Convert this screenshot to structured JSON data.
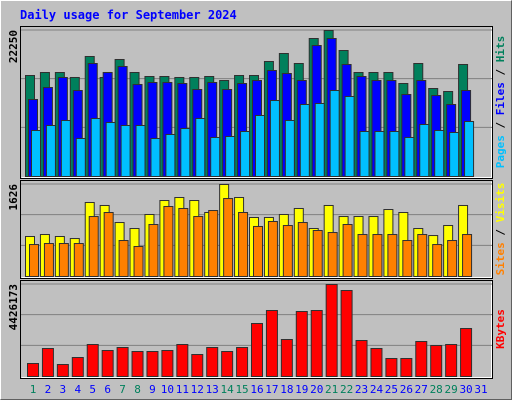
{
  "chart_data": [
    {
      "type": "bar",
      "title": "Daily usage for September 2024",
      "ylim": [
        0,
        22250
      ],
      "yticks": [
        22250
      ],
      "legend_separator": " / ",
      "series": [
        {
          "name": "Hits",
          "color": "#00805c",
          "values": [
            15392,
            15849,
            15849,
            15088,
            18288,
            15088,
            17831,
            15849,
            15240,
            15240,
            15088,
            15088,
            15240,
            14630,
            15392,
            15392,
            17526,
            18745,
            17221,
            21031,
            22250,
            19202,
            15849,
            15849,
            15849,
            14173,
            17221,
            13411,
            12954,
            17069,
            0
          ]
        },
        {
          "name": "Files",
          "color": "#0000ff",
          "values": [
            11735,
            13564,
            15088,
            13106,
            17221,
            15850,
            16764,
            14021,
            14326,
            14326,
            14173,
            13259,
            14326,
            13259,
            14173,
            14630,
            16154,
            15697,
            14630,
            19964,
            21031,
            17069,
            15240,
            14630,
            14630,
            12497,
            14630,
            12344,
            10973,
            13106,
            0
          ]
        },
        {
          "name": "Pages",
          "color": "#00c0ff",
          "values": [
            7010,
            7772,
            8534,
            5791,
            8839,
            8230,
            7772,
            7772,
            5791,
            6401,
            7315,
            8839,
            5944,
            6096,
            6858,
            9296,
            11582,
            8534,
            10973,
            11125,
            13106,
            12192,
            6858,
            6858,
            6858,
            5944,
            7925,
            7010,
            6706,
            8382,
            0
          ]
        }
      ]
    },
    {
      "type": "bar",
      "ylim": [
        0,
        1626
      ],
      "yticks": [
        1626
      ],
      "legend_separator": " / ",
      "series": [
        {
          "name": "Visits",
          "color": "#ffff00",
          "values": [
            707,
            742,
            707,
            671,
            1308,
            1255,
            954,
            848,
            1096,
            1343,
            1396,
            1343,
            1131,
            1626,
            1396,
            1043,
            1043,
            1096,
            1202,
            848,
            1255,
            1060,
            1060,
            1060,
            1184,
            1131,
            848,
            724,
            901,
            1255,
            0
          ]
        },
        {
          "name": "Sites",
          "color": "#ff8000",
          "values": [
            565,
            583,
            583,
            583,
            1060,
            1131,
            636,
            530,
            919,
            1237,
            1202,
            1060,
            1166,
            1378,
            1131,
            884,
            972,
            901,
            954,
            813,
            777,
            919,
            742,
            742,
            742,
            636,
            742,
            565,
            636,
            742,
            0
          ]
        }
      ]
    },
    {
      "type": "bar",
      "ylim": [
        0,
        4426173
      ],
      "yticks": [
        4426173
      ],
      "categories": [
        "1",
        "2",
        "3",
        "4",
        "5",
        "6",
        "7",
        "8",
        "9",
        "10",
        "11",
        "12",
        "13",
        "14",
        "15",
        "16",
        "17",
        "18",
        "19",
        "20",
        "21",
        "22",
        "23",
        "24",
        "25",
        "26",
        "27",
        "28",
        "29",
        "30",
        "31"
      ],
      "category_colors": [
        "#00805c",
        "#0000ff",
        "#0000ff",
        "#0000ff",
        "#0000ff",
        "#0000ff",
        "#00805c",
        "#00805c",
        "#0000ff",
        "#0000ff",
        "#0000ff",
        "#0000ff",
        "#0000ff",
        "#00805c",
        "#00805c",
        "#0000ff",
        "#0000ff",
        "#0000ff",
        "#0000ff",
        "#0000ff",
        "#00805c",
        "#00805c",
        "#0000ff",
        "#0000ff",
        "#0000ff",
        "#0000ff",
        "#0000ff",
        "#00805c",
        "#00805c",
        "#0000ff",
        "#0000ff"
      ],
      "series": [
        {
          "name": "KBytes",
          "color": "#ff0000",
          "values": [
            625443,
            1347108,
            577332,
            914109,
            1539552,
            1250886,
            1395219,
            1202775,
            1202775,
            1250886,
            1539552,
            1058442,
            1395219,
            1202775,
            1395219,
            2549883,
            3175326,
            1780107,
            3127215,
            3175326,
            4426173,
            4137546,
            1731996,
            1347108,
            865998,
            865998,
            1683885,
            1491441,
            1539552,
            2309328,
            0
          ]
        }
      ]
    }
  ]
}
